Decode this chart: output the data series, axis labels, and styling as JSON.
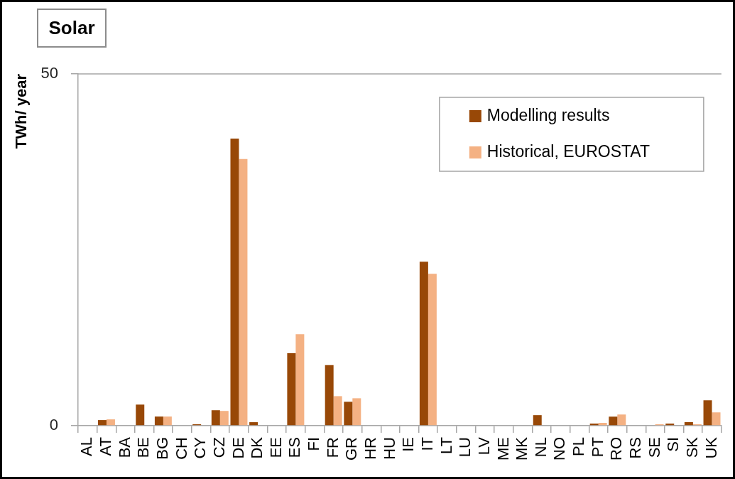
{
  "chart_data": {
    "type": "bar",
    "title": "Solar",
    "ylabel": "TWh/ year",
    "categories": [
      "AL",
      "AT",
      "BA",
      "BE",
      "BG",
      "CH",
      "CY",
      "CZ",
      "DE",
      "DK",
      "EE",
      "ES",
      "FI",
      "FR",
      "GR",
      "HR",
      "HU",
      "IE",
      "IT",
      "LT",
      "LU",
      "LV",
      "ME",
      "MK",
      "NL",
      "NO",
      "PL",
      "PT",
      "RO",
      "RS",
      "SE",
      "SI",
      "SK",
      "UK"
    ],
    "series": [
      {
        "name": "Modelling results",
        "color": "#984807",
        "values": [
          null,
          0.8,
          null,
          3.0,
          1.3,
          null,
          0.2,
          2.2,
          40.8,
          0.5,
          null,
          10.3,
          null,
          8.6,
          3.4,
          null,
          null,
          null,
          23.3,
          null,
          null,
          null,
          null,
          null,
          1.5,
          null,
          null,
          0.3,
          1.3,
          null,
          null,
          0.3,
          0.5,
          3.6
        ]
      },
      {
        "name": "Historical, EUROSTAT",
        "color": "#f4b183",
        "values": [
          null,
          0.9,
          null,
          null,
          1.3,
          null,
          null,
          2.1,
          37.9,
          null,
          null,
          13.0,
          null,
          4.2,
          3.9,
          null,
          null,
          null,
          21.6,
          null,
          null,
          null,
          null,
          null,
          null,
          null,
          null,
          0.4,
          1.6,
          null,
          0.2,
          null,
          0.2,
          1.9
        ]
      }
    ],
    "ylim": [
      0,
      50
    ],
    "yticks": [
      0,
      50
    ],
    "legend": "top right"
  }
}
